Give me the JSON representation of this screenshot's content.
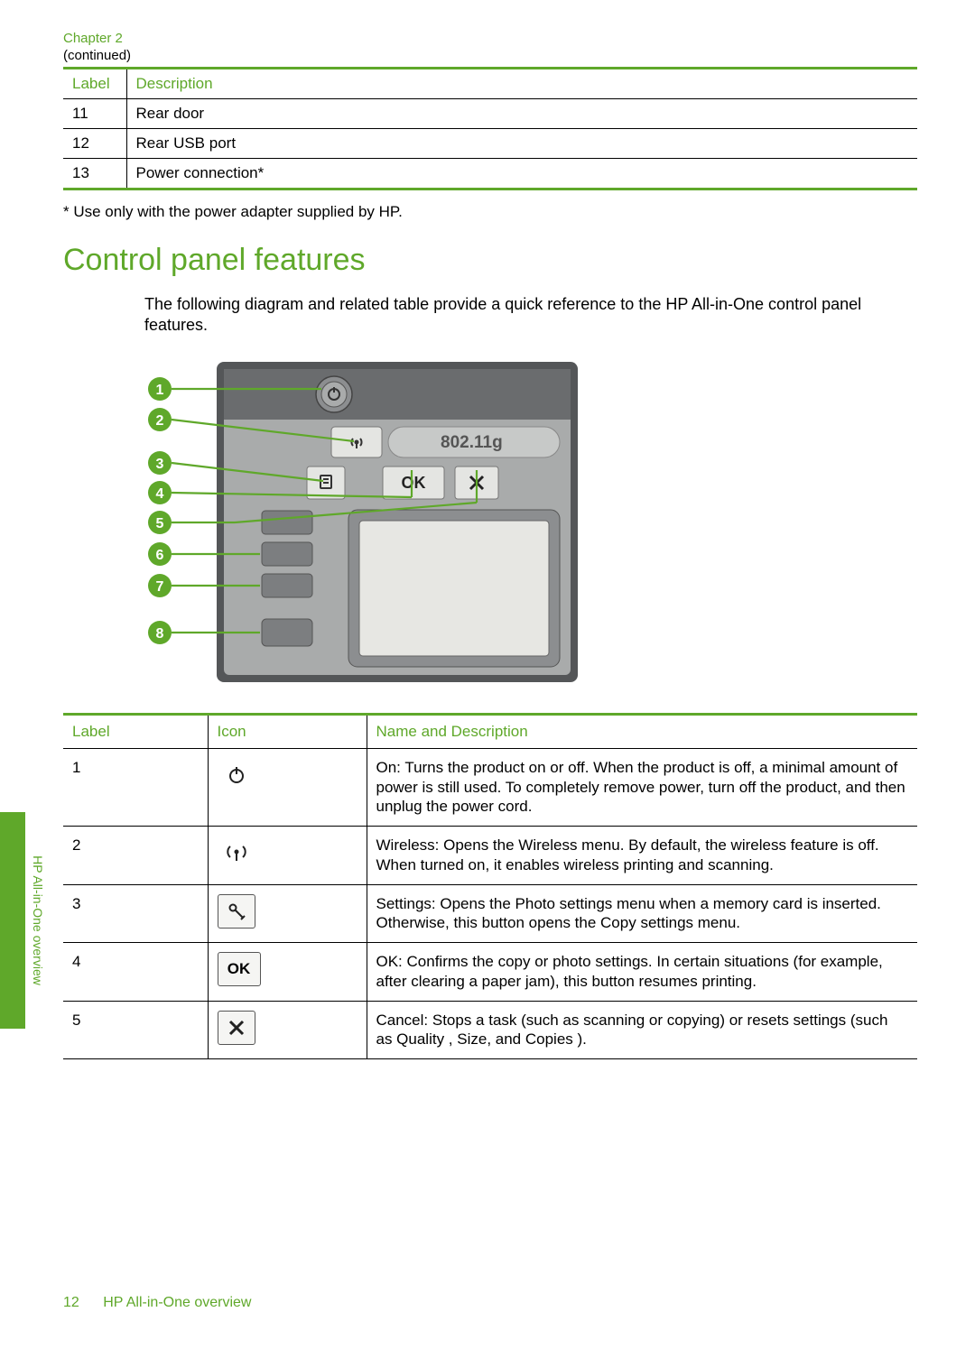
{
  "chapter_label": "Chapter 2",
  "continued_label": "(continued)",
  "table1": {
    "headers": [
      "Label",
      "Description"
    ],
    "rows": [
      [
        "11",
        "Rear door"
      ],
      [
        "12",
        "Rear USB port"
      ],
      [
        "13",
        "Power connection*"
      ]
    ]
  },
  "footnote": "* Use only with the power adapter supplied by HP.",
  "section_heading": "Control panel features",
  "intro_text": "The following diagram and related table provide a quick reference to the HP All-in-One control panel features.",
  "diagram": {
    "callout_count": 8,
    "wifi_label": "802.11g",
    "ok_label": "OK",
    "accent_color": "#5fa82a",
    "callout_fill": "#5fa82a",
    "panel_bg": "#b7b9b9",
    "panel_dark": "#545658",
    "button_face": "#e4e5e2"
  },
  "table2": {
    "headers": [
      "Label",
      "Icon",
      "Name and Description"
    ],
    "rows": [
      {
        "label": "1",
        "icon": "power",
        "desc": "On: Turns the product on or off. When the product is off, a minimal amount of power is still used. To completely remove power, turn off the product, and then unplug the power cord."
      },
      {
        "label": "2",
        "icon": "wireless",
        "desc": "Wireless: Opens the Wireless menu. By default, the wireless feature is off. When turned on, it enables wireless printing and scanning."
      },
      {
        "label": "3",
        "icon": "settings",
        "desc": "Settings: Opens the Photo settings menu when a memory card is inserted. Otherwise, this button opens the Copy settings menu."
      },
      {
        "label": "4",
        "icon": "ok",
        "desc": "OK: Confirms the copy or photo settings. In certain situations (for example, after clearing a paper jam), this button resumes printing."
      },
      {
        "label": "5",
        "icon": "cancel",
        "desc": "Cancel: Stops a task (such as scanning or copying) or resets settings (such as Quality , Size, and Copies )."
      }
    ]
  },
  "side_tab_text": "HP All-in-One overview",
  "footer": {
    "page_number": "12",
    "title": "HP All-in-One overview"
  },
  "colors": {
    "accent": "#5fa82a",
    "text": "#000000",
    "rule": "#000000"
  }
}
